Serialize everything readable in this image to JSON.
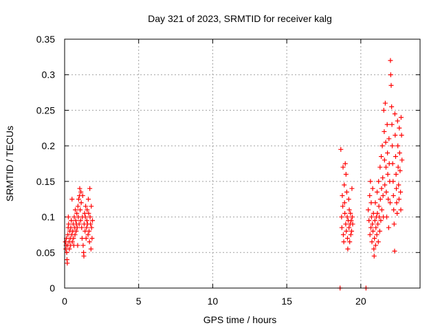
{
  "chart_data": {
    "type": "scatter",
    "title": "Day 321 of 2023, SRMTID for receiver kalg",
    "xlabel": "GPS time / hours",
    "ylabel": "SRMTID / TECUs",
    "xlim": [
      0,
      24
    ],
    "ylim": [
      0,
      0.35
    ],
    "x_ticks": [
      0,
      5,
      10,
      15,
      20
    ],
    "y_ticks": [
      0,
      0.05,
      0.1,
      0.15,
      0.2,
      0.25,
      0.3,
      0.35
    ],
    "x_tick_labels": [
      "0",
      "5",
      "10",
      "15",
      "20"
    ],
    "y_tick_labels": [
      "0",
      "0.05",
      "0.1",
      "0.15",
      "0.2",
      "0.25",
      "0.3",
      "0.35"
    ],
    "grid": true,
    "marker": "+",
    "color": "#ff0000",
    "series": [
      {
        "points": [
          [
            0.05,
            0.065
          ],
          [
            0.08,
            0.055
          ],
          [
            0.1,
            0.06
          ],
          [
            0.12,
            0.07
          ],
          [
            0.14,
            0.05
          ],
          [
            0.16,
            0.04
          ],
          [
            0.18,
            0.035
          ],
          [
            0.2,
            0.06
          ],
          [
            0.22,
            0.075
          ],
          [
            0.24,
            0.085
          ],
          [
            0.25,
            0.1
          ],
          [
            0.27,
            0.09
          ],
          [
            0.3,
            0.065
          ],
          [
            0.32,
            0.055
          ],
          [
            0.35,
            0.08
          ],
          [
            0.38,
            0.07
          ],
          [
            0.4,
            0.06
          ],
          [
            0.42,
            0.085
          ],
          [
            0.45,
            0.095
          ],
          [
            0.48,
            0.075
          ],
          [
            0.5,
            0.125
          ],
          [
            0.52,
            0.065
          ],
          [
            0.55,
            0.08
          ],
          [
            0.58,
            0.09
          ],
          [
            0.6,
            0.07
          ],
          [
            0.62,
            0.06
          ],
          [
            0.65,
            0.1
          ],
          [
            0.68,
            0.085
          ],
          [
            0.7,
            0.075
          ],
          [
            0.72,
            0.11
          ],
          [
            0.75,
            0.095
          ],
          [
            0.78,
            0.08
          ],
          [
            0.8,
            0.09
          ],
          [
            0.82,
            0.105
          ],
          [
            0.85,
            0.085
          ],
          [
            0.88,
            0.06
          ],
          [
            0.9,
            0.115
          ],
          [
            0.92,
            0.1
          ],
          [
            0.95,
            0.125
          ],
          [
            0.98,
            0.09
          ],
          [
            1.0,
            0.13
          ],
          [
            1.02,
            0.14
          ],
          [
            1.05,
            0.11
          ],
          [
            1.08,
            0.095
          ],
          [
            1.1,
            0.135
          ],
          [
            1.12,
            0.12
          ],
          [
            1.15,
            0.085
          ],
          [
            1.18,
            0.07
          ],
          [
            1.2,
            0.1
          ],
          [
            1.22,
            0.13
          ],
          [
            1.25,
            0.06
          ],
          [
            1.28,
            0.05
          ],
          [
            1.3,
            0.045
          ],
          [
            1.32,
            0.09
          ],
          [
            1.35,
            0.105
          ],
          [
            1.38,
            0.08
          ],
          [
            1.4,
            0.1
          ],
          [
            1.42,
            0.115
          ],
          [
            1.45,
            0.07
          ],
          [
            1.48,
            0.085
          ],
          [
            1.5,
            0.095
          ],
          [
            1.52,
            0.11
          ],
          [
            1.55,
            0.09
          ],
          [
            1.58,
            0.075
          ],
          [
            1.6,
            0.125
          ],
          [
            1.62,
            0.105
          ],
          [
            1.65,
            0.08
          ],
          [
            1.68,
            0.065
          ],
          [
            1.7,
            0.14
          ],
          [
            1.72,
            0.1
          ],
          [
            1.75,
            0.09
          ],
          [
            1.78,
            0.055
          ],
          [
            1.8,
            0.115
          ],
          [
            1.82,
            0.085
          ],
          [
            1.85,
            0.07
          ],
          [
            1.88,
            0.095
          ],
          [
            18.6,
            0.0
          ],
          [
            18.65,
            0.195
          ],
          [
            18.7,
            0.1
          ],
          [
            18.72,
            0.085
          ],
          [
            18.75,
            0.13
          ],
          [
            18.78,
            0.115
          ],
          [
            18.8,
            0.17
          ],
          [
            18.82,
            0.075
          ],
          [
            18.85,
            0.065
          ],
          [
            18.88,
            0.145
          ],
          [
            18.9,
            0.12
          ],
          [
            18.92,
            0.105
          ],
          [
            18.95,
            0.175
          ],
          [
            18.98,
            0.09
          ],
          [
            19.0,
            0.16
          ],
          [
            19.02,
            0.08
          ],
          [
            19.05,
            0.135
          ],
          [
            19.08,
            0.1
          ],
          [
            19.1,
            0.07
          ],
          [
            19.12,
            0.055
          ],
          [
            19.15,
            0.095
          ],
          [
            19.18,
            0.125
          ],
          [
            19.2,
            0.085
          ],
          [
            19.22,
            0.11
          ],
          [
            19.25,
            0.065
          ],
          [
            19.28,
            0.09
          ],
          [
            19.3,
            0.105
          ],
          [
            19.32,
            0.075
          ],
          [
            19.35,
            0.095
          ],
          [
            19.38,
            0.08
          ],
          [
            19.4,
            0.14
          ],
          [
            19.42,
            0.1
          ],
          [
            19.45,
            0.09
          ],
          [
            20.35,
            0.0
          ],
          [
            20.5,
            0.11
          ],
          [
            20.55,
            0.095
          ],
          [
            20.6,
            0.13
          ],
          [
            20.62,
            0.075
          ],
          [
            20.65,
            0.15
          ],
          [
            20.68,
            0.085
          ],
          [
            20.7,
            0.12
          ],
          [
            20.72,
            0.1
          ],
          [
            20.75,
            0.065
          ],
          [
            20.78,
            0.09
          ],
          [
            20.8,
            0.14
          ],
          [
            20.82,
            0.08
          ],
          [
            20.85,
            0.105
          ],
          [
            20.88,
            0.055
          ],
          [
            20.9,
            0.045
          ],
          [
            20.92,
            0.07
          ],
          [
            20.95,
            0.095
          ],
          [
            20.98,
            0.12
          ],
          [
            21.0,
            0.06
          ],
          [
            21.02,
            0.085
          ],
          [
            21.05,
            0.1
          ],
          [
            21.08,
            0.075
          ],
          [
            21.1,
            0.135
          ],
          [
            21.12,
            0.105
          ],
          [
            21.15,
            0.09
          ],
          [
            21.18,
            0.065
          ],
          [
            21.2,
            0.15
          ],
          [
            21.22,
            0.115
          ],
          [
            21.25,
            0.1
          ],
          [
            21.28,
            0.08
          ],
          [
            21.3,
            0.17
          ],
          [
            21.32,
            0.125
          ],
          [
            21.35,
            0.095
          ],
          [
            21.38,
            0.185
          ],
          [
            21.4,
            0.14
          ],
          [
            21.42,
            0.11
          ],
          [
            21.45,
            0.2
          ],
          [
            21.48,
            0.155
          ],
          [
            21.5,
            0.13
          ],
          [
            21.52,
            0.1
          ],
          [
            21.55,
            0.25
          ],
          [
            21.58,
            0.22
          ],
          [
            21.6,
            0.18
          ],
          [
            21.62,
            0.145
          ],
          [
            21.65,
            0.26
          ],
          [
            21.68,
            0.205
          ],
          [
            21.7,
            0.17
          ],
          [
            21.72,
            0.135
          ],
          [
            21.75,
            0.1
          ],
          [
            21.78,
            0.23
          ],
          [
            21.8,
            0.19
          ],
          [
            21.82,
            0.16
          ],
          [
            21.85,
            0.125
          ],
          [
            21.88,
            0.085
          ],
          [
            21.9,
            0.21
          ],
          [
            21.92,
            0.175
          ],
          [
            21.95,
            0.15
          ],
          [
            21.98,
            0.12
          ],
          [
            22.0,
            0.32
          ],
          [
            22.02,
            0.3
          ],
          [
            22.05,
            0.285
          ],
          [
            22.08,
            0.255
          ],
          [
            22.1,
            0.23
          ],
          [
            22.12,
            0.2
          ],
          [
            22.15,
            0.175
          ],
          [
            22.18,
            0.15
          ],
          [
            22.2,
            0.13
          ],
          [
            22.22,
            0.11
          ],
          [
            22.25,
            0.09
          ],
          [
            22.28,
            0.052
          ],
          [
            22.3,
            0.245
          ],
          [
            22.32,
            0.215
          ],
          [
            22.35,
            0.185
          ],
          [
            22.38,
            0.16
          ],
          [
            22.4,
            0.14
          ],
          [
            22.42,
            0.12
          ],
          [
            22.45,
            0.105
          ],
          [
            22.48,
            0.235
          ],
          [
            22.5,
            0.2
          ],
          [
            22.52,
            0.17
          ],
          [
            22.55,
            0.145
          ],
          [
            22.58,
            0.125
          ],
          [
            22.6,
            0.225
          ],
          [
            22.62,
            0.19
          ],
          [
            22.65,
            0.165
          ],
          [
            22.68,
            0.135
          ],
          [
            22.7,
            0.11
          ],
          [
            22.72,
            0.24
          ],
          [
            22.75,
            0.215
          ],
          [
            22.78,
            0.18
          ]
        ]
      }
    ]
  }
}
